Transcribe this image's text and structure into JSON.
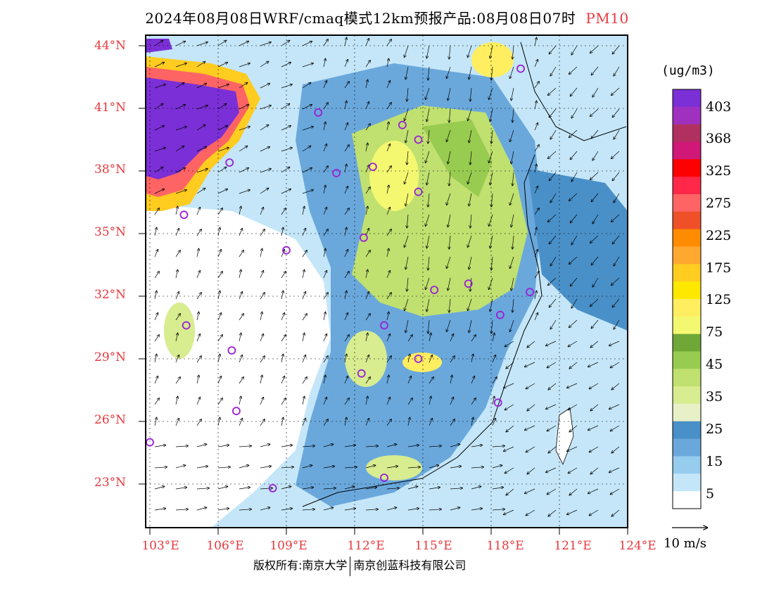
{
  "title": "2024年08月08日WRF/cmaq模式12km预报产品:08月08日07时",
  "variable": "PM10",
  "latitude_labels": [
    "44°N",
    "41°N",
    "38°N",
    "35°N",
    "32°N",
    "29°N",
    "26°N",
    "23°N"
  ],
  "longitude_labels": [
    "103°E",
    "106°E",
    "109°E",
    "112°E",
    "115°E",
    "118°E",
    "121°E",
    "124°E"
  ],
  "colorbar": {
    "unit": "(ug/m3)",
    "labels": [
      "403",
      "368",
      "325",
      "275",
      "225",
      "175",
      "125",
      "75",
      "45",
      "35",
      "25",
      "15",
      "5"
    ],
    "colors": [
      "#7b2fd6",
      "#a030c0",
      "#b03060",
      "#d01878",
      "#ff0000",
      "#ff2848",
      "#ff6464",
      "#f05028",
      "#ff8c00",
      "#ffa830",
      "#ffcc20",
      "#ffe800",
      "#ffee60",
      "#f4f870",
      "#70a838",
      "#98cc50",
      "#c0e070",
      "#d8ec90",
      "#e8f0c8",
      "#4a90c8",
      "#6aa8dc",
      "#96ccee",
      "#c4e6f8",
      "#ffffff"
    ]
  },
  "wind_reference": {
    "label": "10 m/s"
  },
  "stations": [
    {
      "lon": 119.3,
      "lat": 42.9
    },
    {
      "lon": 110.4,
      "lat": 40.8
    },
    {
      "lon": 114.1,
      "lat": 40.2
    },
    {
      "lon": 114.8,
      "lat": 39.5
    },
    {
      "lon": 106.5,
      "lat": 38.4
    },
    {
      "lon": 111.2,
      "lat": 37.9
    },
    {
      "lon": 112.8,
      "lat": 38.2
    },
    {
      "lon": 114.8,
      "lat": 37.0
    },
    {
      "lon": 104.5,
      "lat": 35.9
    },
    {
      "lon": 109.0,
      "lat": 34.2
    },
    {
      "lon": 112.4,
      "lat": 34.8
    },
    {
      "lon": 117.0,
      "lat": 32.6
    },
    {
      "lon": 115.5,
      "lat": 32.3
    },
    {
      "lon": 119.7,
      "lat": 32.2
    },
    {
      "lon": 118.4,
      "lat": 31.1
    },
    {
      "lon": 104.6,
      "lat": 30.6
    },
    {
      "lon": 113.3,
      "lat": 30.6
    },
    {
      "lon": 106.6,
      "lat": 29.4
    },
    {
      "lon": 114.8,
      "lat": 29.0
    },
    {
      "lon": 112.3,
      "lat": 28.3
    },
    {
      "lon": 118.3,
      "lat": 26.9
    },
    {
      "lon": 106.8,
      "lat": 26.5
    },
    {
      "lon": 103.0,
      "lat": 25.0
    },
    {
      "lon": 108.4,
      "lat": 22.8
    },
    {
      "lon": 113.3,
      "lat": 23.3
    }
  ],
  "copyright": {
    "prefix": "版权所有:",
    "org1": "南京大学",
    "org2": "南京创蓝科技有限公司"
  }
}
